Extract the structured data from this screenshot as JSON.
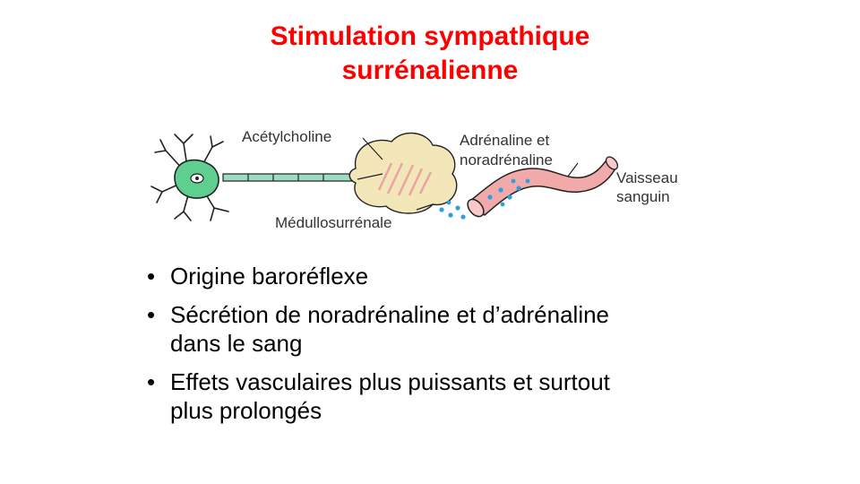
{
  "title": {
    "line1": "Stimulation sympathique",
    "line2": "surrénalienne"
  },
  "figure": {
    "labels": {
      "acetylcholine": "Acétylcholine",
      "medullo": "Médullosurrénale",
      "adrenaline_line1": "Adrénaline et",
      "adrenaline_line2": "noradrénaline",
      "vessel_line1": "Vaisseau",
      "vessel_line2": "sanguin"
    },
    "colors": {
      "neuron": "#5fcf8f",
      "axon": "#9ddcc0",
      "gland": "#f3e6b8",
      "gland_hatch": "#e9a5a5",
      "vessel": "#f1a9a9",
      "dots": "#2aa0e0"
    }
  },
  "bullets": [
    {
      "lines": [
        "Origine baroréflexe"
      ]
    },
    {
      "lines": [
        "Sécrétion de noradrénaline et d’adrénaline",
        "dans le sang"
      ]
    },
    {
      "lines": [
        "Effets vasculaires plus puissants et surtout",
        "plus prolongés"
      ]
    }
  ]
}
